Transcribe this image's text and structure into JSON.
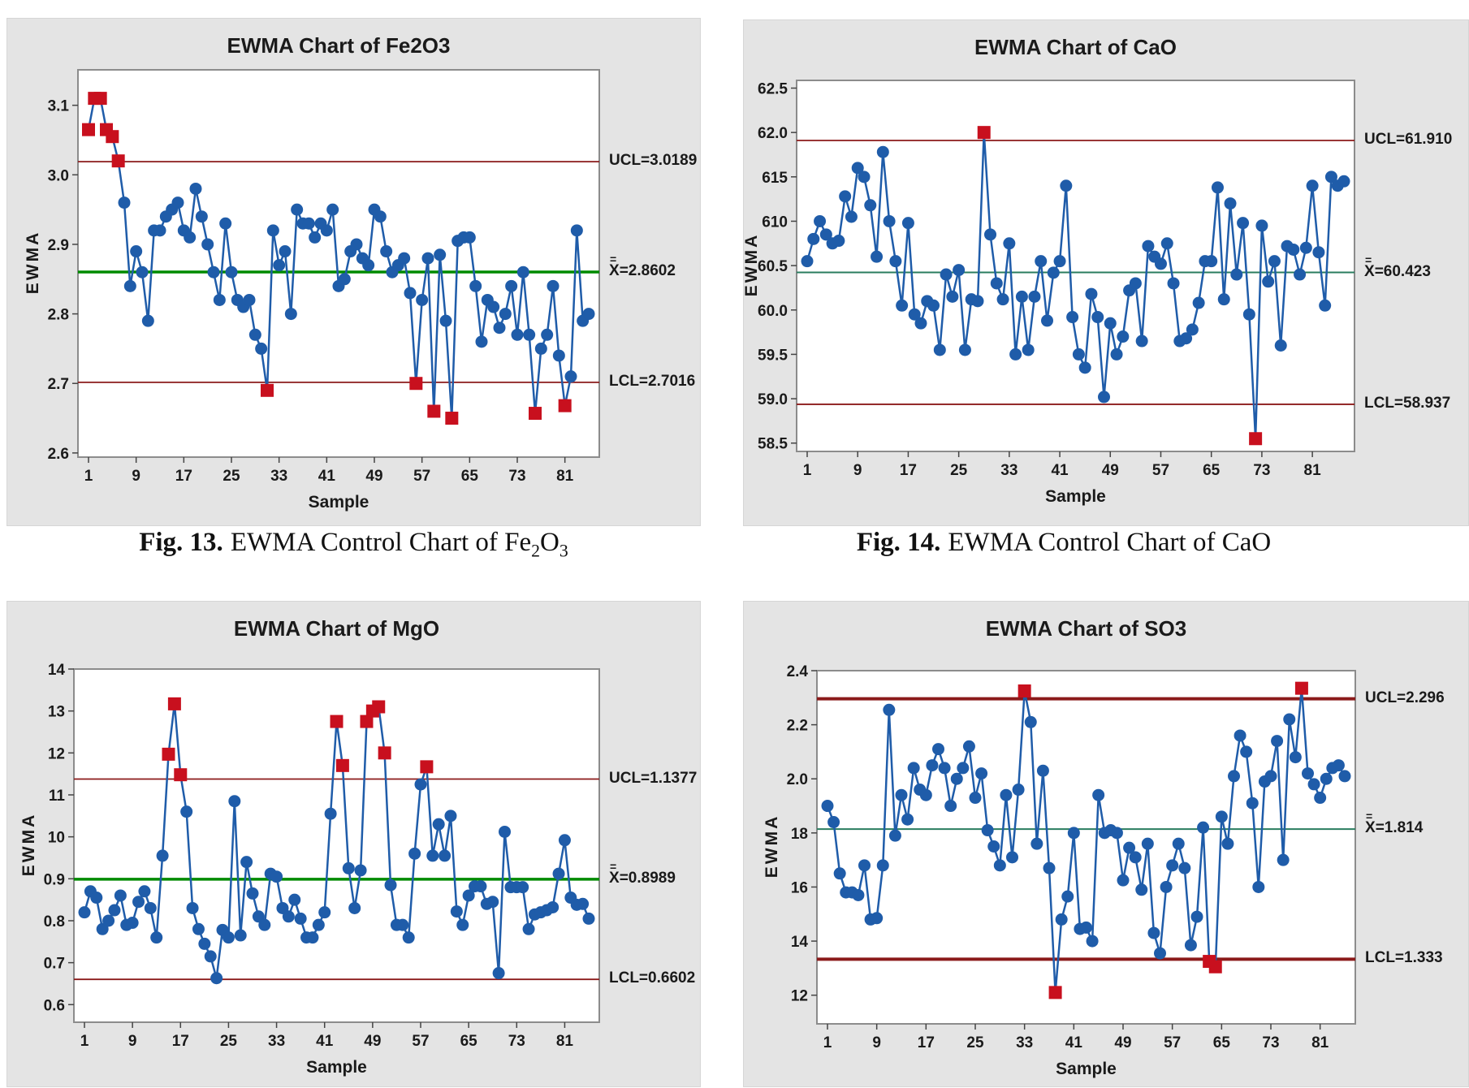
{
  "page": {
    "background": "#ffffff"
  },
  "colors": {
    "panel_bg": "#e4e4e4",
    "plot_bg": "#ffffff",
    "plot_border": "#8c8c8c",
    "series_blue": "#1f5ca9",
    "flag_red": "#c8101e",
    "limit_red": "#8b1a1a",
    "center_green_thick": "#008a00",
    "center_green_thin": "#2a7d5f",
    "text": "#1a1a1a"
  },
  "captions": [
    {
      "prefix": "Fig. 13.",
      "body": "EWMA Control Chart of ",
      "formula": [
        [
          "Fe",
          "n"
        ],
        [
          "2",
          "s"
        ],
        [
          "O",
          "n"
        ],
        [
          "3",
          "s"
        ]
      ]
    },
    {
      "prefix": "Fig. 14.",
      "body": "EWMA Control Chart of CaO",
      "formula": []
    }
  ],
  "chart_data": [
    {
      "type": "line",
      "title": "EWMA Chart of Fe2O3",
      "xlabel": "Sample",
      "ylabel": "EWMA",
      "ylim": [
        2.594,
        3.151
      ],
      "yticks": [
        {
          "label": "3.1",
          "value": 3.1
        },
        {
          "label": "3.0",
          "value": 3.0
        },
        {
          "label": "2.9",
          "value": 2.9
        },
        {
          "label": "2.8",
          "value": 2.8
        },
        {
          "label": "2.7",
          "value": 2.7
        },
        {
          "label": "2.6",
          "value": 2.6
        }
      ],
      "xticks": [
        1,
        9,
        17,
        25,
        33,
        41,
        49,
        57,
        65,
        73,
        81
      ],
      "ucl": {
        "label": "UCL=3.0189",
        "value": 3.0189
      },
      "center": {
        "symbol": "X",
        "overbar": "=",
        "eq": "=2.8602",
        "value": 2.8602,
        "thick": true
      },
      "lcl": {
        "label": "LCL=2.7016",
        "value": 2.7016
      },
      "limit_thick": false,
      "samples": [
        3.065,
        3.11,
        3.11,
        3.065,
        3.055,
        3.02,
        2.96,
        2.84,
        2.89,
        2.86,
        2.79,
        2.92,
        2.92,
        2.94,
        2.95,
        2.96,
        2.92,
        2.91,
        2.98,
        2.94,
        2.9,
        2.86,
        2.82,
        2.93,
        2.86,
        2.82,
        2.81,
        2.82,
        2.77,
        2.75,
        2.69,
        2.92,
        2.87,
        2.89,
        2.8,
        2.95,
        2.93,
        2.93,
        2.91,
        2.93,
        2.92,
        2.95,
        2.84,
        2.85,
        2.89,
        2.9,
        2.88,
        2.87,
        2.95,
        2.94,
        2.89,
        2.86,
        2.87,
        2.88,
        2.83,
        2.7,
        2.82,
        2.88,
        2.66,
        2.885,
        2.79,
        2.65,
        2.905,
        2.91,
        2.91,
        2.84,
        2.76,
        2.82,
        2.81,
        2.78,
        2.8,
        2.84,
        2.77,
        2.86,
        2.77,
        2.657,
        2.75,
        2.77,
        2.84,
        2.74,
        2.668,
        2.71,
        2.92,
        2.79,
        2.8
      ],
      "out_of_control": [
        1,
        2,
        3,
        4,
        5,
        6,
        31,
        56,
        59,
        62,
        76,
        81
      ]
    },
    {
      "type": "line",
      "title": "EWMA Chart of CaO",
      "xlabel": "Sample",
      "ylabel": "EWMA",
      "ylim": [
        58.406,
        62.587
      ],
      "yticks": [
        {
          "label": "62.5",
          "value": 62.5
        },
        {
          "label": "62.0",
          "value": 62.0
        },
        {
          "label": "615",
          "value": 61.5
        },
        {
          "label": "610",
          "value": 61.0
        },
        {
          "label": "60.5",
          "value": 60.5
        },
        {
          "label": "60.0",
          "value": 60.0
        },
        {
          "label": "59.5",
          "value": 59.5
        },
        {
          "label": "59.0",
          "value": 59.0
        },
        {
          "label": "58.5",
          "value": 58.5
        }
      ],
      "xticks": [
        1,
        9,
        17,
        25,
        33,
        41,
        49,
        57,
        65,
        73,
        81
      ],
      "ucl": {
        "label": "UCL=61.910",
        "value": 61.91
      },
      "center": {
        "symbol": "X",
        "overbar": "=",
        "eq": "=60.423",
        "value": 60.423,
        "thick": false
      },
      "lcl": {
        "label": "LCL=58.937",
        "value": 58.937
      },
      "limit_thick": false,
      "samples": [
        60.55,
        60.8,
        61.0,
        60.85,
        60.75,
        60.78,
        61.28,
        61.05,
        61.6,
        61.5,
        61.18,
        60.6,
        61.78,
        61.0,
        60.55,
        60.05,
        60.98,
        59.95,
        59.85,
        60.1,
        60.05,
        59.55,
        60.4,
        60.15,
        60.45,
        59.55,
        60.12,
        60.1,
        62.0,
        60.85,
        60.3,
        60.12,
        60.75,
        59.5,
        60.15,
        59.55,
        60.15,
        60.55,
        59.88,
        60.42,
        60.55,
        61.4,
        59.92,
        59.5,
        59.35,
        60.18,
        59.92,
        59.02,
        59.85,
        59.5,
        59.7,
        60.22,
        60.3,
        59.65,
        60.72,
        60.6,
        60.52,
        60.75,
        60.3,
        59.65,
        59.68,
        59.78,
        60.08,
        60.55,
        60.55,
        61.38,
        60.12,
        61.2,
        60.4,
        60.98,
        59.95,
        58.55,
        60.95,
        60.32,
        60.55,
        59.6,
        60.72,
        60.68,
        60.4,
        60.7,
        61.4,
        60.65,
        60.05,
        61.5,
        61.4,
        61.45
      ],
      "out_of_control": [
        29,
        72
      ]
    },
    {
      "type": "line",
      "title": "EWMA Chart of MgO",
      "xlabel": "Sample",
      "ylabel": "EWMA",
      "ylim": [
        0.558,
        1.4
      ],
      "yticks": [
        {
          "label": "14",
          "value": 1.4
        },
        {
          "label": "13",
          "value": 1.3
        },
        {
          "label": "12",
          "value": 1.2
        },
        {
          "label": "11",
          "value": 1.1
        },
        {
          "label": "10",
          "value": 1.0
        },
        {
          "label": "0.9",
          "value": 0.9
        },
        {
          "label": "0.8",
          "value": 0.8
        },
        {
          "label": "0.7",
          "value": 0.7
        },
        {
          "label": "0.6",
          "value": 0.6
        }
      ],
      "xticks": [
        1,
        9,
        17,
        25,
        33,
        41,
        49,
        57,
        65,
        73,
        81
      ],
      "ucl": {
        "label": "UCL=1.1377",
        "value": 1.1377
      },
      "center": {
        "symbol": "X",
        "overbar": "=",
        "eq": "=0.8989",
        "value": 0.8989,
        "thick": true
      },
      "lcl": {
        "label": "LCL=0.6602",
        "value": 0.6602
      },
      "limit_thick": false,
      "samples": [
        0.82,
        0.87,
        0.855,
        0.78,
        0.8,
        0.825,
        0.86,
        0.79,
        0.795,
        0.845,
        0.87,
        0.83,
        0.76,
        0.955,
        1.197,
        1.317,
        1.148,
        1.06,
        0.83,
        0.78,
        0.745,
        0.715,
        0.663,
        0.778,
        0.76,
        1.085,
        0.765,
        0.94,
        0.865,
        0.81,
        0.79,
        0.912,
        0.905,
        0.83,
        0.81,
        0.85,
        0.805,
        0.76,
        0.76,
        0.79,
        0.82,
        1.055,
        1.275,
        1.17,
        0.925,
        0.83,
        0.92,
        1.275,
        1.3,
        1.31,
        1.2,
        0.885,
        0.79,
        0.79,
        0.76,
        0.96,
        1.125,
        1.167,
        0.955,
        1.03,
        0.955,
        1.05,
        0.822,
        0.79,
        0.86,
        0.882,
        0.882,
        0.84,
        0.845,
        0.675,
        1.012,
        0.88,
        0.88,
        0.88,
        0.78,
        0.815,
        0.82,
        0.825,
        0.832,
        0.912,
        0.992,
        0.855,
        0.838,
        0.84,
        0.805
      ],
      "out_of_control": [
        15,
        16,
        17,
        43,
        44,
        48,
        49,
        50,
        51,
        58
      ]
    },
    {
      "type": "line",
      "title": "EWMA Chart of SO3",
      "xlabel": "Sample",
      "ylabel": "EWMA",
      "ylim": [
        1.094,
        2.4
      ],
      "yticks": [
        {
          "label": "2.4",
          "value": 2.4
        },
        {
          "label": "2.2",
          "value": 2.2
        },
        {
          "label": "2.0",
          "value": 2.0
        },
        {
          "label": "18",
          "value": 1.8
        },
        {
          "label": "16",
          "value": 1.6
        },
        {
          "label": "14",
          "value": 1.4
        },
        {
          "label": "12",
          "value": 1.2
        }
      ],
      "xticks": [
        1,
        9,
        17,
        25,
        33,
        41,
        49,
        57,
        65,
        73,
        81
      ],
      "ucl": {
        "label": "UCL=2.296",
        "value": 2.296
      },
      "center": {
        "symbol": "X",
        "overbar": "=",
        "eq": "=1.814",
        "value": 1.814,
        "thick": false
      },
      "lcl": {
        "label": "LCL=1.333",
        "value": 1.333
      },
      "limit_thick": true,
      "samples": [
        1.9,
        1.84,
        1.65,
        1.58,
        1.58,
        1.57,
        1.68,
        1.48,
        1.485,
        1.68,
        2.255,
        1.79,
        1.94,
        1.85,
        2.04,
        1.96,
        1.94,
        2.05,
        2.11,
        2.04,
        1.9,
        2.0,
        2.04,
        2.12,
        1.93,
        2.02,
        1.81,
        1.75,
        1.68,
        1.94,
        1.71,
        1.96,
        2.325,
        2.21,
        1.76,
        2.03,
        1.67,
        1.21,
        1.48,
        1.565,
        1.8,
        1.445,
        1.45,
        1.4,
        1.94,
        1.8,
        1.81,
        1.8,
        1.625,
        1.745,
        1.71,
        1.59,
        1.76,
        1.43,
        1.355,
        1.6,
        1.68,
        1.76,
        1.67,
        1.385,
        1.49,
        1.82,
        1.325,
        1.305,
        1.86,
        1.76,
        2.01,
        2.16,
        2.1,
        1.91,
        1.6,
        1.99,
        2.01,
        2.14,
        1.7,
        2.22,
        2.08,
        2.335,
        2.02,
        1.98,
        1.93,
        2.0,
        2.04,
        2.05,
        2.01
      ],
      "out_of_control": [
        33,
        38,
        63,
        64,
        78
      ]
    }
  ]
}
